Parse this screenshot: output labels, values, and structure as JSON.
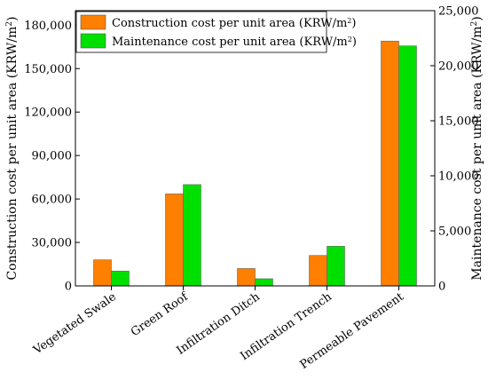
{
  "chart_data": {
    "type": "bar",
    "title": "",
    "categories": [
      "Vegetated Swale",
      "Green Roof",
      "Infiltration Ditch",
      "Infiltration Trench",
      "Permeable Pavement"
    ],
    "series": [
      {
        "name": "Construction cost per unit area (KRW/m2)",
        "name_main": "Construction cost per unit area (KRW/m",
        "name_sup": "2",
        "name_tail": ")",
        "axis": "left",
        "color": "#ff7f00",
        "values": [
          18000,
          63500,
          12000,
          21000,
          169000
        ]
      },
      {
        "name": "Maintenance cost per unit area (KRW/m2)",
        "name_main": "Maintenance cost per unit area (KRW/m",
        "name_sup": "2",
        "name_tail": ")",
        "axis": "right",
        "color": "#00e000",
        "values": [
          1350,
          9200,
          650,
          3600,
          21800
        ]
      }
    ],
    "y_left": {
      "label_main": "Construction cost per unit area (KRW/m",
      "label_sup": "2",
      "label_tail": ")",
      "ylim": [
        0,
        190000
      ],
      "ticks": [
        0,
        30000,
        60000,
        90000,
        120000,
        150000,
        180000
      ],
      "tick_labels": [
        "0",
        "30,000",
        "60,000",
        "90,000",
        "120,000",
        "150,000",
        "180,000"
      ]
    },
    "y_right": {
      "label_main": "Maintenance cost per unit area (KRW/m",
      "label_sup": "2",
      "label_tail": ")",
      "ylim": [
        0,
        25000
      ],
      "ticks": [
        0,
        5000,
        10000,
        15000,
        20000,
        25000
      ],
      "tick_labels": [
        "0",
        "5,000",
        "10,000",
        "15,000",
        "20,000",
        "25,000"
      ]
    },
    "grid": false,
    "legend": "top-left"
  }
}
